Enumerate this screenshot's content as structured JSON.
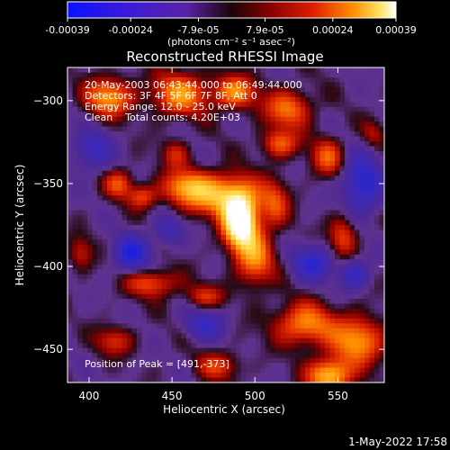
{
  "chart_data": {
    "type": "heatmap",
    "title": "Reconstructed RHESSI Image",
    "xlabel": "Heliocentric X (arcsec)",
    "ylabel": "Heliocentric Y (arcsec)",
    "xlim": [
      387,
      578
    ],
    "ylim": [
      -470,
      -280
    ],
    "x_ticks": [
      400,
      450,
      500,
      550
    ],
    "y_ticks": [
      -300,
      -350,
      -400,
      -450
    ],
    "colorbar": {
      "range": [
        -0.00039,
        0.00039
      ],
      "ticks": [
        -0.00039,
        -0.00024,
        -7.9e-05,
        7.9e-05,
        0.00024,
        0.00039
      ],
      "tick_labels": [
        "-0.00039",
        "-0.00024",
        "-7.9e-05",
        "7.9e-05",
        "0.00024",
        "0.00039"
      ],
      "units_label": "(photons cm⁻² s⁻¹ asec⁻²)"
    },
    "annotations": [
      "20-May-2003 06:43:44.000 to 06:49:44.000",
      "Detectors: 3F 4F 5F 6F 7F 8F, Att 0",
      "Energy Range: 12.0 - 25.0 keV",
      "Clean    Total counts: 4.20E+03"
    ],
    "peak_label": "Position of Peak = [491,-373]",
    "peak": [
      491,
      -373
    ],
    "sources": [
      {
        "x": 491,
        "y": -373,
        "amp": 1.0,
        "sx": 7,
        "sy": 11
      },
      {
        "x": 480,
        "y": -357,
        "amp": 0.55,
        "sx": 16,
        "sy": 9
      },
      {
        "x": 500,
        "y": -395,
        "amp": 0.45,
        "sx": 8,
        "sy": 12
      },
      {
        "x": 458,
        "y": -352,
        "amp": 0.4,
        "sx": 10,
        "sy": 7
      },
      {
        "x": 512,
        "y": -363,
        "amp": 0.3,
        "sx": 6,
        "sy": 10
      },
      {
        "x": 412,
        "y": -298,
        "amp": 0.5,
        "sx": 10,
        "sy": 8
      },
      {
        "x": 455,
        "y": -296,
        "amp": 0.48,
        "sx": 12,
        "sy": 9
      },
      {
        "x": 488,
        "y": -295,
        "amp": 0.46,
        "sx": 9,
        "sy": 7
      },
      {
        "x": 520,
        "y": -305,
        "amp": 0.42,
        "sx": 10,
        "sy": 8
      },
      {
        "x": 515,
        "y": -326,
        "amp": 0.38,
        "sx": 8,
        "sy": 6
      },
      {
        "x": 418,
        "y": -350,
        "amp": 0.35,
        "sx": 6,
        "sy": 6
      },
      {
        "x": 432,
        "y": -358,
        "amp": 0.32,
        "sx": 6,
        "sy": 5
      },
      {
        "x": 544,
        "y": -334,
        "amp": 0.36,
        "sx": 7,
        "sy": 8
      },
      {
        "x": 553,
        "y": -382,
        "amp": 0.33,
        "sx": 6,
        "sy": 9
      },
      {
        "x": 438,
        "y": -410,
        "amp": 0.36,
        "sx": 11,
        "sy": 6
      },
      {
        "x": 470,
        "y": -418,
        "amp": 0.28,
        "sx": 8,
        "sy": 5
      },
      {
        "x": 530,
        "y": -435,
        "amp": 0.46,
        "sx": 13,
        "sy": 9
      },
      {
        "x": 562,
        "y": -445,
        "amp": 0.5,
        "sx": 11,
        "sy": 10
      },
      {
        "x": 545,
        "y": -466,
        "amp": 0.62,
        "sx": 9,
        "sy": 7
      },
      {
        "x": 415,
        "y": -445,
        "amp": 0.28,
        "sx": 8,
        "sy": 6
      },
      {
        "x": 478,
        "y": -460,
        "amp": 0.3,
        "sx": 9,
        "sy": 6
      },
      {
        "x": 452,
        "y": -332,
        "amp": 0.25,
        "sx": 6,
        "sy": 6
      },
      {
        "x": 395,
        "y": -392,
        "amp": 0.24,
        "sx": 5,
        "sy": 7
      },
      {
        "x": 571,
        "y": -320,
        "amp": 0.2,
        "sx": 5,
        "sy": 6
      }
    ],
    "lows": [
      {
        "x": 426,
        "y": -392,
        "amp": 0.55,
        "sx": 7,
        "sy": 7
      },
      {
        "x": 565,
        "y": -350,
        "amp": 0.5,
        "sx": 8,
        "sy": 12
      },
      {
        "x": 535,
        "y": -398,
        "amp": 0.45,
        "sx": 8,
        "sy": 7
      },
      {
        "x": 560,
        "y": -405,
        "amp": 0.4,
        "sx": 6,
        "sy": 6
      },
      {
        "x": 402,
        "y": -330,
        "amp": 0.35,
        "sx": 8,
        "sy": 8
      },
      {
        "x": 470,
        "y": -435,
        "amp": 0.35,
        "sx": 8,
        "sy": 6
      },
      {
        "x": 448,
        "y": -378,
        "amp": 0.3,
        "sx": 6,
        "sy": 6
      }
    ]
  },
  "footer": {
    "date": "1-May-2022 17:58"
  },
  "colors": {
    "background": "#000000",
    "foreground": "#ffffff"
  }
}
